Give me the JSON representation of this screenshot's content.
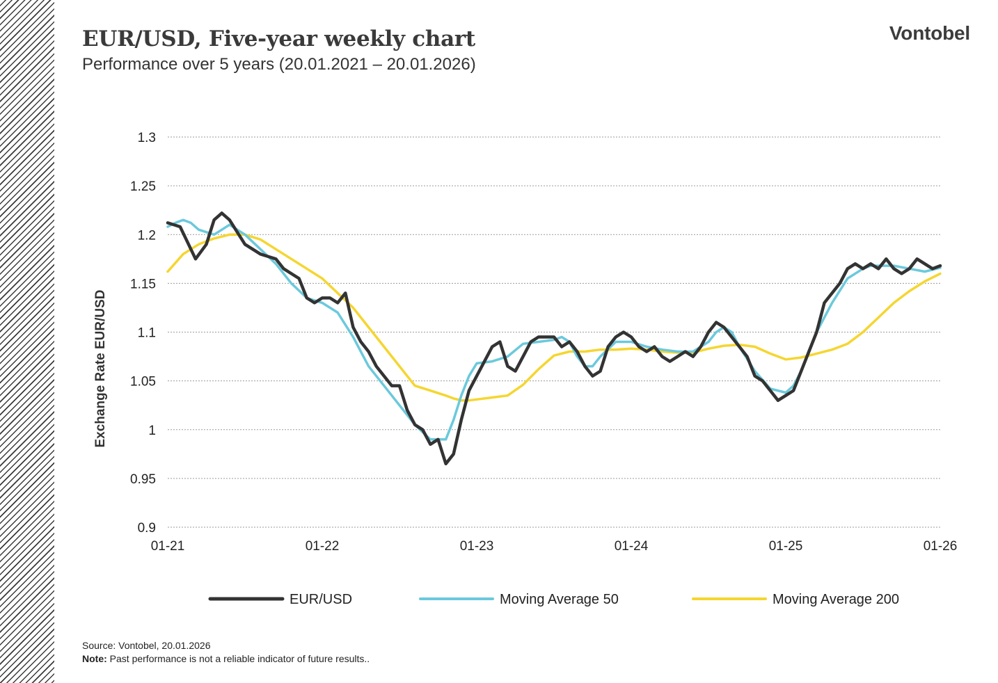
{
  "header": {
    "title": "EUR/USD, Five-year weekly chart",
    "subtitle": "Performance over 5 years (20.01.2021 – 20.01.2026)",
    "logo": "Vontobel"
  },
  "footer": {
    "source": "Source: Vontobel, 20.01.2026",
    "note_label": "Note:",
    "note_text": " Past performance is not a reliable indicator of future results.."
  },
  "chart_data": {
    "type": "line",
    "ylabel": "Exchange Rate EUR/USD",
    "xlabel": "",
    "ylim": [
      0.9,
      1.3
    ],
    "yticks": [
      "1.3",
      "1.25",
      "1.2",
      "1.15",
      "1.1",
      "1.05",
      "1",
      "0.95",
      "0.9"
    ],
    "xtick_labels": [
      "01-21",
      "01-22",
      "01-23",
      "01-24",
      "01-25",
      "01-26"
    ],
    "xlim": [
      2021.0,
      2026.0
    ],
    "grid": "horizontal dotted",
    "legend_position": "bottom",
    "series": [
      {
        "name": "EUR/USD",
        "color": "#333333",
        "x": [
          2021.0,
          2021.08,
          2021.12,
          2021.18,
          2021.25,
          2021.3,
          2021.35,
          2021.4,
          2021.5,
          2021.6,
          2021.7,
          2021.75,
          2021.8,
          2021.85,
          2021.9,
          2021.95,
          2022.0,
          2022.05,
          2022.1,
          2022.15,
          2022.2,
          2022.25,
          2022.3,
          2022.35,
          2022.4,
          2022.45,
          2022.5,
          2022.55,
          2022.6,
          2022.65,
          2022.7,
          2022.75,
          2022.8,
          2022.85,
          2022.9,
          2022.95,
          2023.0,
          2023.05,
          2023.1,
          2023.15,
          2023.2,
          2023.25,
          2023.3,
          2023.35,
          2023.4,
          2023.45,
          2023.5,
          2023.55,
          2023.6,
          2023.65,
          2023.7,
          2023.75,
          2023.8,
          2023.85,
          2023.9,
          2023.95,
          2024.0,
          2024.05,
          2024.1,
          2024.15,
          2024.2,
          2024.25,
          2024.3,
          2024.35,
          2024.4,
          2024.45,
          2024.5,
          2024.55,
          2024.6,
          2024.65,
          2024.7,
          2024.75,
          2024.8,
          2024.85,
          2024.9,
          2024.95,
          2025.0,
          2025.05,
          2025.1,
          2025.15,
          2025.2,
          2025.25,
          2025.3,
          2025.35,
          2025.4,
          2025.45,
          2025.5,
          2025.55,
          2025.6,
          2025.65,
          2025.7,
          2025.75,
          2025.8,
          2025.85,
          2025.9,
          2025.95,
          2026.0
        ],
        "values": [
          1.212,
          1.208,
          1.195,
          1.175,
          1.19,
          1.215,
          1.222,
          1.215,
          1.19,
          1.18,
          1.175,
          1.165,
          1.16,
          1.155,
          1.135,
          1.13,
          1.135,
          1.135,
          1.13,
          1.14,
          1.105,
          1.09,
          1.08,
          1.065,
          1.055,
          1.045,
          1.045,
          1.02,
          1.005,
          1.0,
          0.985,
          0.99,
          0.965,
          0.975,
          1.01,
          1.04,
          1.055,
          1.07,
          1.085,
          1.09,
          1.065,
          1.06,
          1.075,
          1.09,
          1.095,
          1.095,
          1.095,
          1.085,
          1.09,
          1.08,
          1.065,
          1.055,
          1.06,
          1.085,
          1.095,
          1.1,
          1.095,
          1.085,
          1.08,
          1.085,
          1.075,
          1.07,
          1.075,
          1.08,
          1.075,
          1.085,
          1.1,
          1.11,
          1.105,
          1.095,
          1.085,
          1.075,
          1.055,
          1.05,
          1.04,
          1.03,
          1.035,
          1.04,
          1.06,
          1.08,
          1.1,
          1.13,
          1.14,
          1.15,
          1.165,
          1.17,
          1.165,
          1.17,
          1.165,
          1.175,
          1.165,
          1.16,
          1.165,
          1.175,
          1.17,
          1.165,
          1.168
        ]
      },
      {
        "name": "Moving Average 50",
        "color": "#6bc9dc",
        "x": [
          2021.0,
          2021.05,
          2021.1,
          2021.15,
          2021.2,
          2021.3,
          2021.4,
          2021.5,
          2021.6,
          2021.7,
          2021.8,
          2021.9,
          2022.0,
          2022.1,
          2022.2,
          2022.3,
          2022.4,
          2022.5,
          2022.6,
          2022.7,
          2022.8,
          2022.85,
          2022.9,
          2022.95,
          2023.0,
          2023.1,
          2023.2,
          2023.3,
          2023.4,
          2023.5,
          2023.55,
          2023.6,
          2023.65,
          2023.7,
          2023.75,
          2023.8,
          2023.9,
          2024.0,
          2024.1,
          2024.2,
          2024.3,
          2024.4,
          2024.5,
          2024.55,
          2024.6,
          2024.65,
          2024.7,
          2024.8,
          2024.9,
          2025.0,
          2025.05,
          2025.1,
          2025.15,
          2025.2,
          2025.3,
          2025.4,
          2025.5,
          2025.55,
          2025.6,
          2025.7,
          2025.8,
          2025.9,
          2026.0
        ],
        "values": [
          1.208,
          1.212,
          1.215,
          1.212,
          1.205,
          1.2,
          1.21,
          1.2,
          1.185,
          1.17,
          1.15,
          1.135,
          1.13,
          1.12,
          1.095,
          1.065,
          1.045,
          1.025,
          1.005,
          0.99,
          0.99,
          1.01,
          1.035,
          1.055,
          1.068,
          1.07,
          1.075,
          1.088,
          1.09,
          1.092,
          1.095,
          1.09,
          1.075,
          1.065,
          1.065,
          1.075,
          1.09,
          1.09,
          1.085,
          1.082,
          1.08,
          1.08,
          1.09,
          1.1,
          1.105,
          1.1,
          1.085,
          1.06,
          1.042,
          1.038,
          1.045,
          1.06,
          1.08,
          1.1,
          1.13,
          1.155,
          1.165,
          1.168,
          1.168,
          1.168,
          1.165,
          1.162,
          1.166
        ]
      },
      {
        "name": "Moving Average 200",
        "color": "#f5d630",
        "x": [
          2021.0,
          2021.1,
          2021.2,
          2021.3,
          2021.4,
          2021.5,
          2021.6,
          2021.7,
          2021.8,
          2021.9,
          2022.0,
          2022.1,
          2022.2,
          2022.3,
          2022.4,
          2022.5,
          2022.6,
          2022.7,
          2022.8,
          2022.85,
          2022.9,
          2022.95,
          2023.0,
          2023.1,
          2023.2,
          2023.3,
          2023.4,
          2023.5,
          2023.6,
          2023.7,
          2023.8,
          2023.9,
          2024.0,
          2024.1,
          2024.2,
          2024.3,
          2024.4,
          2024.5,
          2024.6,
          2024.7,
          2024.8,
          2024.9,
          2025.0,
          2025.1,
          2025.2,
          2025.3,
          2025.4,
          2025.5,
          2025.6,
          2025.7,
          2025.8,
          2025.9,
          2026.0
        ],
        "values": [
          1.162,
          1.18,
          1.19,
          1.196,
          1.2,
          1.2,
          1.195,
          1.185,
          1.175,
          1.165,
          1.155,
          1.14,
          1.125,
          1.105,
          1.085,
          1.065,
          1.045,
          1.04,
          1.035,
          1.032,
          1.03,
          1.03,
          1.031,
          1.033,
          1.035,
          1.046,
          1.062,
          1.076,
          1.08,
          1.08,
          1.082,
          1.082,
          1.083,
          1.082,
          1.08,
          1.079,
          1.079,
          1.083,
          1.086,
          1.087,
          1.085,
          1.078,
          1.072,
          1.074,
          1.078,
          1.082,
          1.088,
          1.1,
          1.115,
          1.13,
          1.142,
          1.152,
          1.16
        ]
      }
    ]
  }
}
